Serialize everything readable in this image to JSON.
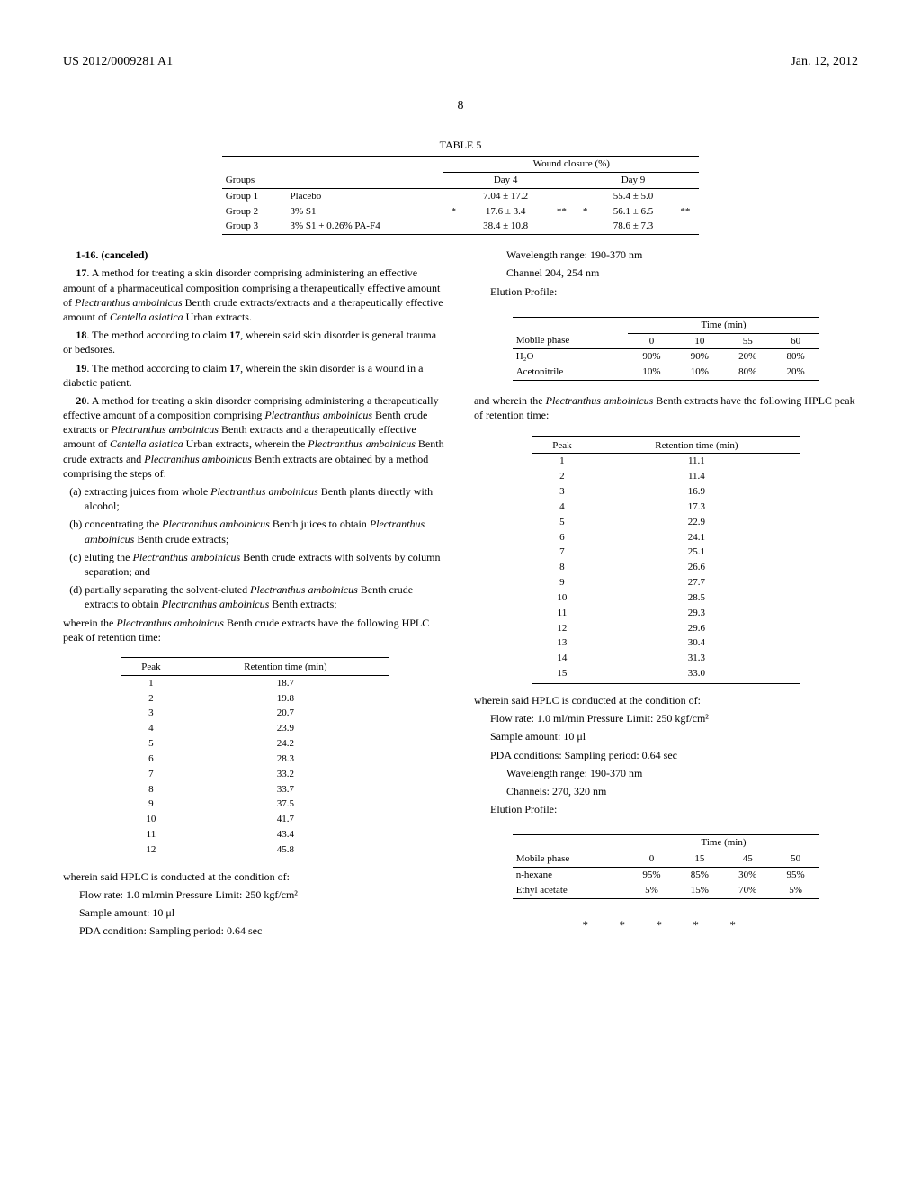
{
  "header": {
    "pub_number": "US 2012/0009281 A1",
    "pub_date": "Jan. 12, 2012"
  },
  "page_number": "8",
  "table5": {
    "title": "TABLE 5",
    "col_header": "Wound closure (%)",
    "groups_label": "Groups",
    "day4_label": "Day 4",
    "day9_label": "Day 9",
    "rows": [
      {
        "g": "Group 1",
        "name": "Placebo",
        "d4": "7.04 ± 17.2",
        "d9": "55.4 ± 5.0"
      },
      {
        "g": "Group 2",
        "name": "3% S1",
        "d4": "17.6 ± 3.4",
        "d9": "56.1 ± 6.5"
      },
      {
        "g": "Group 3",
        "name": "3% S1 + 0.26% PA-F4",
        "d4": "38.4 ± 10.8",
        "d9": "78.6 ± 7.3"
      }
    ],
    "stars": {
      "s1": "*",
      "s2": "**",
      "s3": "*",
      "s4": "**"
    }
  },
  "claims": {
    "canceled": "1-16. (canceled)",
    "c17": "17. A method for treating a skin disorder comprising administering an effective amount of a pharmaceutical composition comprising a therapeutically effective amount of Plectranthus amboinicus Benth crude extracts/extracts and a therapeutically effective amount of Centella asiatica Urban extracts.",
    "c18": "18. The method according to claim 17, wherein said skin disorder is general trauma or bedsores.",
    "c19": "19. The method according to claim 17, wherein the skin disorder is a wound in a diabetic patient.",
    "c20_lead": "20. A method for treating a skin disorder comprising administering a therapeutically effective amount of a composition comprising Plectranthus amboinicus Benth crude extracts or Plectranthus amboinicus Benth extracts and a therapeutically effective amount of Centella asiatica Urban extracts, wherein the Plectranthus amboinicus Benth crude extracts and Plectranthus amboinicus Benth extracts are obtained by a method comprising the steps of:",
    "c20_a": "(a) extracting juices from whole Plectranthus amboinicus Benth plants directly with alcohol;",
    "c20_b": "(b) concentrating the Plectranthus amboinicus Benth juices to obtain Plectranthus amboinicus Benth crude extracts;",
    "c20_c": "(c) eluting the Plectranthus amboinicus Benth crude extracts with solvents by column separation; and",
    "c20_d": "(d) partially separating the solvent-eluted Plectranthus amboinicus Benth crude extracts to obtain Plectranthus amboinicus Benth extracts;",
    "c20_tail": "wherein the Plectranthus amboinicus Benth crude extracts have the following HPLC peak of retention time:"
  },
  "rt_table1": {
    "h1": "Peak",
    "h2": "Retention time (min)",
    "rows": [
      [
        "1",
        "18.7"
      ],
      [
        "2",
        "19.8"
      ],
      [
        "3",
        "20.7"
      ],
      [
        "4",
        "23.9"
      ],
      [
        "5",
        "24.2"
      ],
      [
        "6",
        "28.3"
      ],
      [
        "7",
        "33.2"
      ],
      [
        "8",
        "33.7"
      ],
      [
        "9",
        "37.5"
      ],
      [
        "10",
        "41.7"
      ],
      [
        "11",
        "43.4"
      ],
      [
        "12",
        "45.8"
      ]
    ]
  },
  "hplc1": {
    "lead": "wherein said HPLC is conducted at the condition of:",
    "l1": "Flow rate: 1.0 ml/min Pressure Limit: 250 kgf/cm²",
    "l2": "Sample amount: 10 μl",
    "l3": "PDA condition: Sampling period: 0.64 sec",
    "l4": "Wavelength range: 190-370 nm",
    "l5": "Channel 204, 254 nm",
    "l6": "Elution Profile:"
  },
  "mp_table1": {
    "time_label": "Time (min)",
    "mp_label": "Mobile phase",
    "cols": [
      "0",
      "10",
      "55",
      "60"
    ],
    "rows": [
      {
        "name": "H₂O",
        "v": [
          "90%",
          "90%",
          "20%",
          "80%"
        ]
      },
      {
        "name": "Acetonitrile",
        "v": [
          "10%",
          "10%",
          "80%",
          "20%"
        ]
      }
    ]
  },
  "mid_text": "and wherein the Plectranthus amboinicus Benth extracts have the following HPLC peak of retention time:",
  "rt_table2": {
    "h1": "Peak",
    "h2": "Retention time (min)",
    "rows": [
      [
        "1",
        "11.1"
      ],
      [
        "2",
        "11.4"
      ],
      [
        "3",
        "16.9"
      ],
      [
        "4",
        "17.3"
      ],
      [
        "5",
        "22.9"
      ],
      [
        "6",
        "24.1"
      ],
      [
        "7",
        "25.1"
      ],
      [
        "8",
        "26.6"
      ],
      [
        "9",
        "27.7"
      ],
      [
        "10",
        "28.5"
      ],
      [
        "11",
        "29.3"
      ],
      [
        "12",
        "29.6"
      ],
      [
        "13",
        "30.4"
      ],
      [
        "14",
        "31.3"
      ],
      [
        "15",
        "33.0"
      ]
    ]
  },
  "hplc2": {
    "lead": "wherein said HPLC is conducted at the condition of:",
    "l1": "Flow rate: 1.0 ml/min Pressure Limit: 250 kgf/cm²",
    "l2": "Sample amount: 10 μl",
    "l3": "PDA conditions: Sampling period: 0.64 sec",
    "l4": "Wavelength range: 190-370 nm",
    "l5": "Channels: 270, 320 nm",
    "l6": "Elution Profile:"
  },
  "mp_table2": {
    "time_label": "Time (min)",
    "mp_label": "Mobile phase",
    "cols": [
      "0",
      "15",
      "45",
      "50"
    ],
    "rows": [
      {
        "name": "n-hexane",
        "v": [
          "95%",
          "85%",
          "30%",
          "95%"
        ]
      },
      {
        "name": "Ethyl acetate",
        "v": [
          "5%",
          "15%",
          "70%",
          "5%"
        ]
      }
    ]
  },
  "end": "* * * * *"
}
